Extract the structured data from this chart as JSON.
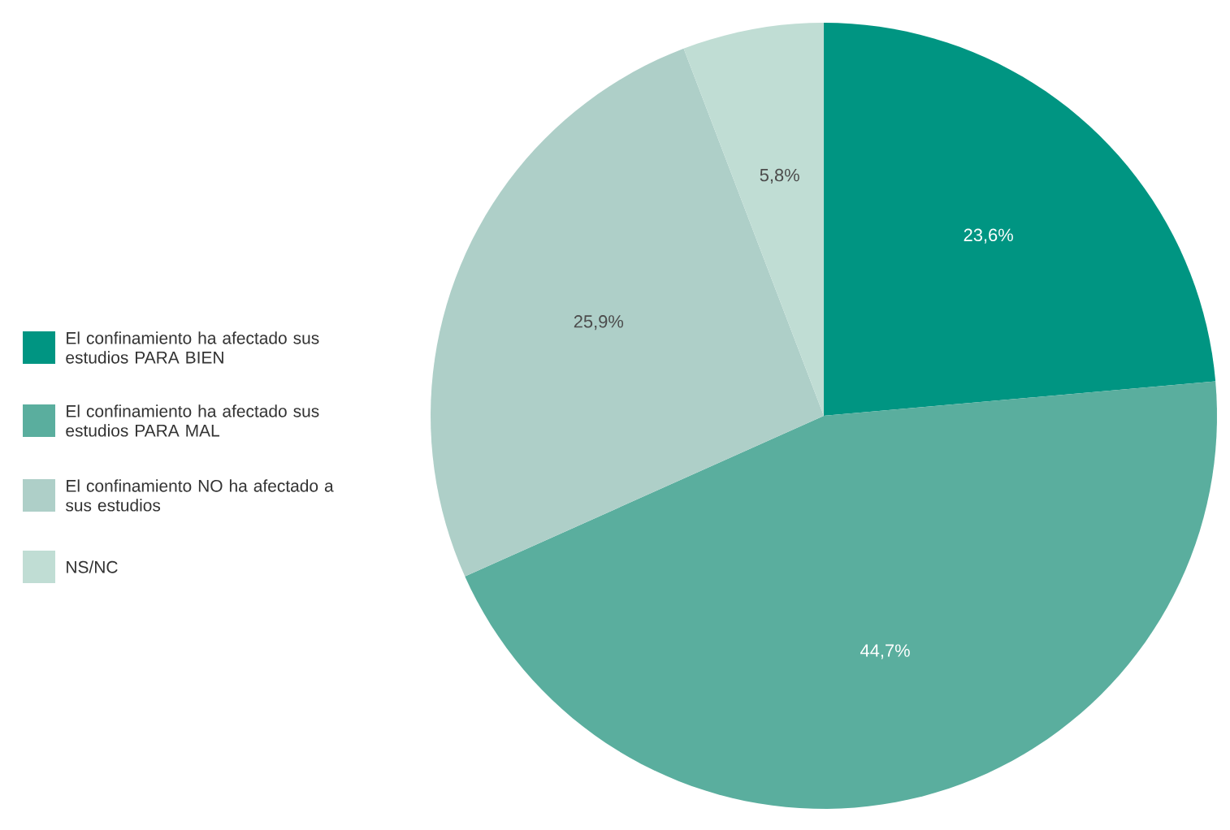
{
  "chart_data": {
    "type": "pie",
    "categories": [
      "El confinamiento ha afectado sus estudios PARA BIEN",
      "El confinamiento ha afectado sus estudios PARA MAL",
      "El confinamiento NO ha afectado a sus estudios",
      "NS/NC"
    ],
    "values": [
      23.6,
      44.7,
      25.9,
      5.8
    ],
    "value_labels": [
      "23,6%",
      "44,7%",
      "25,9%",
      "5,8%"
    ],
    "colors": [
      "#009582",
      "#5aae9e",
      "#aecfc8",
      "#c0ddd4"
    ],
    "legend": "left"
  }
}
